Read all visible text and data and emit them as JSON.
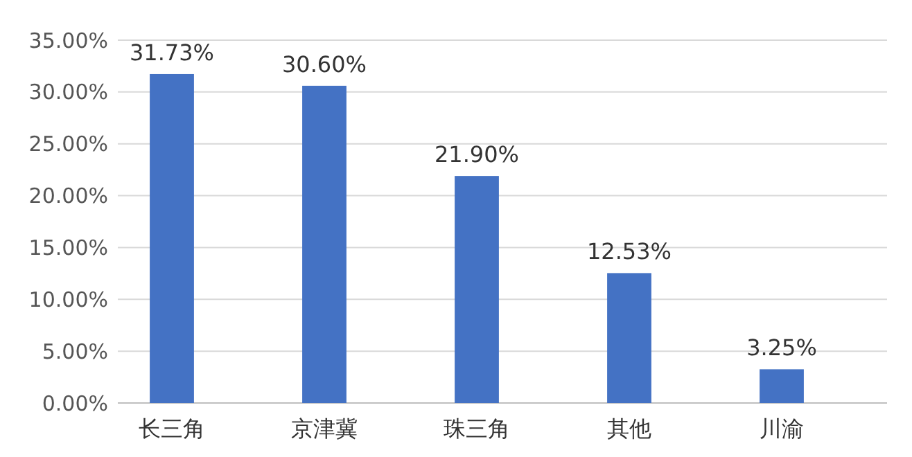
{
  "chart_data": {
    "type": "bar",
    "categories": [
      "长三角",
      "京津冀",
      "珠三角",
      "其他",
      "川渝"
    ],
    "values": [
      31.73,
      30.6,
      21.9,
      12.53,
      3.25
    ],
    "value_labels": [
      "31.73%",
      "30.60%",
      "21.90%",
      "12.53%",
      "3.25%"
    ],
    "color": "#4472c4",
    "ylim": [
      0,
      35
    ],
    "yticks": [
      {
        "value": 0,
        "label": "0.00%"
      },
      {
        "value": 5,
        "label": "5.00%"
      },
      {
        "value": 10,
        "label": "10.00%"
      },
      {
        "value": 15,
        "label": "15.00%"
      },
      {
        "value": 20,
        "label": "20.00%"
      },
      {
        "value": 25,
        "label": "25.00%"
      },
      {
        "value": 30,
        "label": "30.00%"
      },
      {
        "value": 35,
        "label": "35.00%"
      }
    ],
    "grid": "y"
  }
}
